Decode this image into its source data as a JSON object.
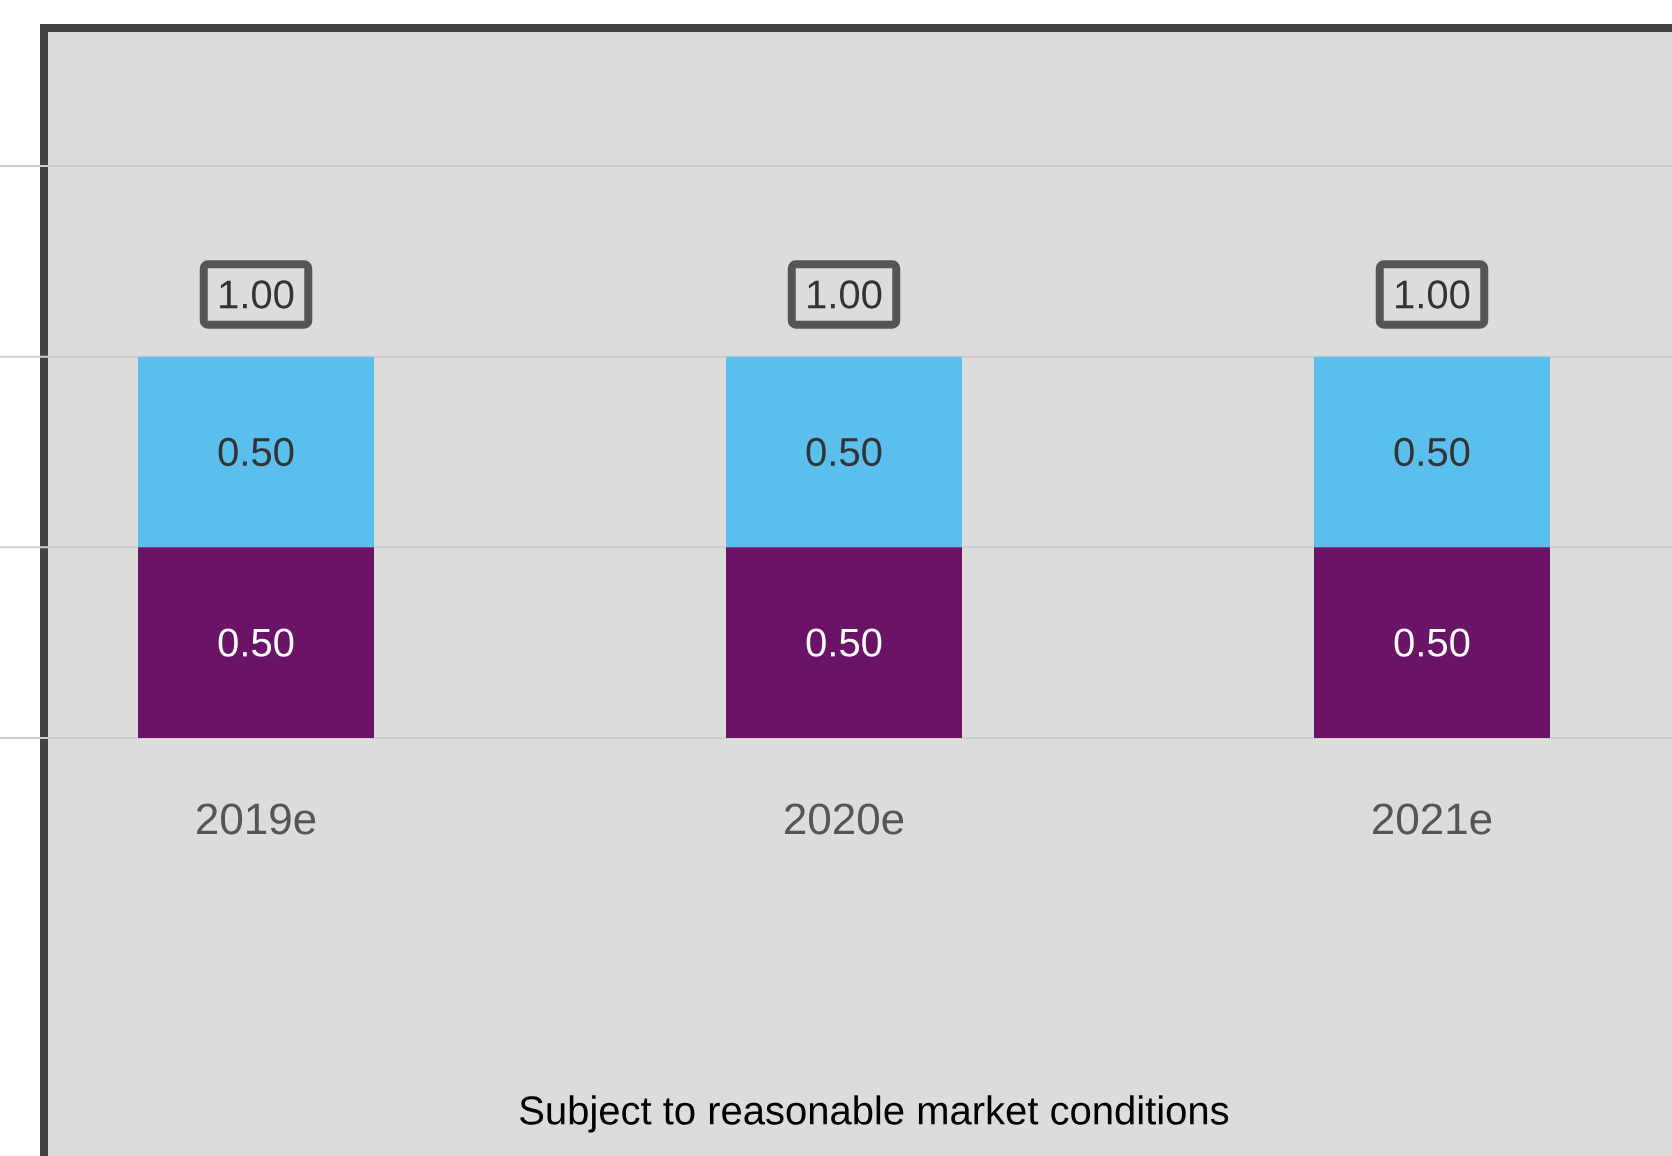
{
  "chart_data": {
    "type": "bar",
    "stacked": true,
    "categories": [
      "2019e",
      "2020e",
      "2021e"
    ],
    "series": [
      {
        "color": "#6b1467",
        "values": [
          0.5,
          0.5,
          0.5
        ],
        "value_labels": [
          "0.50",
          "0.50",
          "0.50"
        ]
      },
      {
        "color": "#5bbfed",
        "values": [
          0.5,
          0.5,
          0.5
        ],
        "value_labels": [
          "0.50",
          "0.50",
          "0.50"
        ]
      }
    ],
    "totals": [
      "1.00",
      "1.00",
      "1.00"
    ],
    "ylim": [
      0,
      1.5
    ],
    "yticks": [
      {
        "value": 0,
        "label": null
      },
      {
        "value": 0.5,
        "label": null
      },
      {
        "value": 1,
        "label": null
      },
      {
        "value": 1.5,
        "label": null
      }
    ],
    "grid": "y",
    "tick_labels": "x",
    "annotations": [
      "Subject to reasonable market conditions"
    ]
  }
}
